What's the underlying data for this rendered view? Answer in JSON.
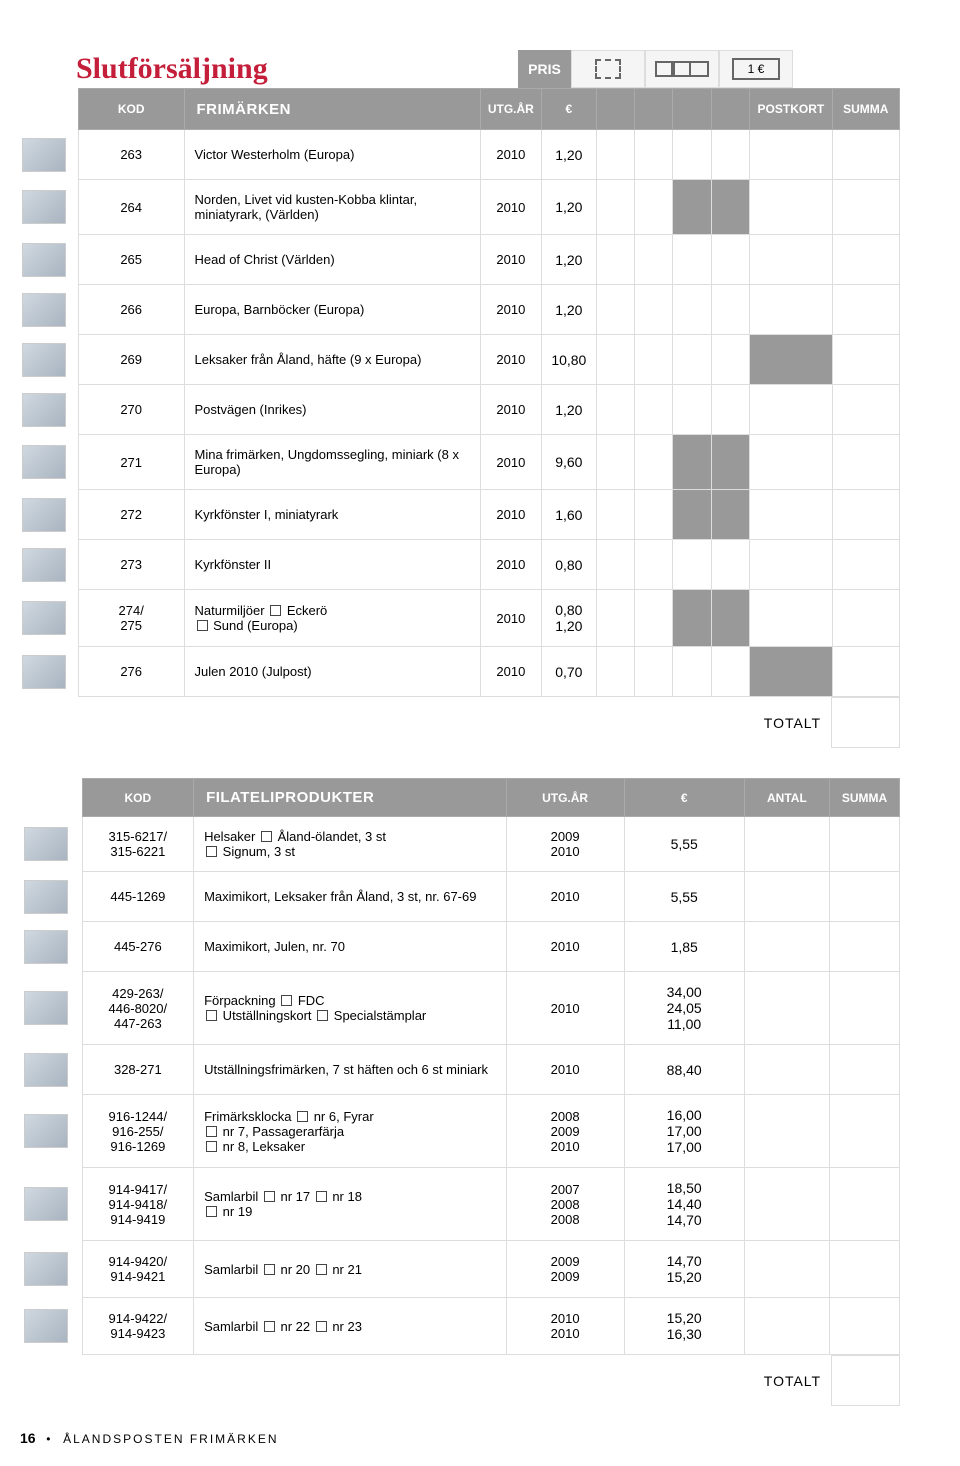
{
  "title": "Slutförsäljning",
  "labels": {
    "pris": "PRIS",
    "one_euro": "1 €",
    "kod": "KOD",
    "frimarken": "FRIMÄRKEN",
    "utgar": "UTG.ÅR",
    "euro": "€",
    "postkort": "POSTKORT",
    "summa": "SUMMA",
    "totalt": "TOTALT",
    "filateli": "FILATELIPRODUKTER",
    "antal": "ANTAL"
  },
  "rows": [
    {
      "kod": "263",
      "desc": "Victor Westerholm (Europa)",
      "year": "2010",
      "price": "1,20",
      "grey": []
    },
    {
      "kod": "264",
      "desc": "Norden, Livet vid kusten-Kobba klintar, miniatyrark, (Världen)",
      "year": "2010",
      "price": "1,20",
      "grey": [
        "s2",
        "c2"
      ]
    },
    {
      "kod": "265",
      "desc": "Head of Christ (Världen)",
      "year": "2010",
      "price": "1,20",
      "grey": []
    },
    {
      "kod": "266",
      "desc": "Europa, Barnböcker (Europa)",
      "year": "2010",
      "price": "1,20",
      "grey": []
    },
    {
      "kod": "269",
      "desc": "Leksaker från Åland, häfte (9 x Europa)",
      "year": "2010",
      "price": "10,80",
      "grey": [
        "post"
      ]
    },
    {
      "kod": "270",
      "desc": "Postvägen (Inrikes)",
      "year": "2010",
      "price": "1,20",
      "grey": []
    },
    {
      "kod": "271",
      "desc": "Mina frimärken, Ungdomssegling, miniark (8 x Europa)",
      "year": "2010",
      "price": "9,60",
      "grey": [
        "s2",
        "c2"
      ]
    },
    {
      "kod": "272",
      "desc": "Kyrkfönster I, miniatyrark",
      "year": "2010",
      "price": "1,60",
      "grey": [
        "s2",
        "c2"
      ]
    },
    {
      "kod": "273",
      "desc": "Kyrkfönster II",
      "year": "2010",
      "price": "0,80",
      "grey": []
    },
    {
      "kod": "274/ 275",
      "desc_html": "Naturmiljöer  <span class=\"chk\"></span> Eckerö<br><span class=\"chk\"></span> Sund (Europa)",
      "year": "2010",
      "price": "0,80<br>1,20",
      "grey": [
        "s2",
        "c2"
      ]
    },
    {
      "kod": "276",
      "desc": "Julen 2010 (Julpost)",
      "year": "2010",
      "price": "0,70",
      "grey": [
        "post"
      ]
    }
  ],
  "rows2": [
    {
      "kod": "315-6217/ 315-6221",
      "desc_html": "Helsaker  <span class=\"chk\"></span> Åland-ölandet, 3 st<br><span class=\"chk\"></span> Signum, 3 st",
      "year": "2009<br>2010",
      "price": "5,55"
    },
    {
      "kod": "445-1269",
      "desc": "Maximikort, Leksaker från Åland, 3 st, nr. 67-69",
      "year": "2010",
      "price": "5,55"
    },
    {
      "kod": "445-276",
      "desc": "Maximikort, Julen, nr. 70",
      "year": "2010",
      "price": "1,85"
    },
    {
      "kod": "429-263/ 446-8020/ 447-263",
      "desc_html": "Förpackning  <span class=\"chk\"></span> FDC<br><span class=\"chk\"></span> Utställningskort  <span class=\"chk\"></span> Specialstämplar",
      "year": "2010",
      "price": "34,00<br>24,05<br>11,00"
    },
    {
      "kod": "328-271",
      "desc": "Utställningsfrimärken, 7 st häften och 6 st miniark",
      "year": "2010",
      "price": "88,40"
    },
    {
      "kod": "916-1244/ 916-255/ 916-1269",
      "desc_html": "Frimärksklocka  <span class=\"chk\"></span> nr 6, Fyrar<br><span class=\"chk\"></span> nr 7, Passagerarfärja<br><span class=\"chk\"></span> nr 8, Leksaker",
      "year": "2008<br>2009<br>2010",
      "price": "16,00<br>17,00<br>17,00"
    },
    {
      "kod": "914-9417/ 914-9418/ 914-9419",
      "desc_html": "Samlarbil  <span class=\"chk\"></span> nr 17   <span class=\"chk\"></span> nr 18<br><span class=\"chk\"></span> nr 19",
      "year": "2007<br>2008<br>2008",
      "price": "18,50<br>14,40<br>14,70"
    },
    {
      "kod": "914-9420/ 914-9421",
      "desc_html": "Samlarbil  <span class=\"chk\"></span> nr 20   <span class=\"chk\"></span> nr 21",
      "year": "2009<br>2009",
      "price": "14,70<br>15,20"
    },
    {
      "kod": "914-9422/ 914-9423",
      "desc_html": "Samlarbil  <span class=\"chk\"></span> nr 22   <span class=\"chk\"></span> nr 23",
      "year": "2010<br>2010",
      "price": "15,20<br>16,30"
    }
  ],
  "footer": {
    "page": "16",
    "text": "ÅLANDSPOSTEN FRIMÄRKEN"
  },
  "thumb_colors": {
    "default": "linear-gradient(135deg,#d8d4cc,#b8b0a0)",
    "red": "linear-gradient(135deg,#e84040,#c02020)",
    "blue": "linear-gradient(135deg,#6090d0,#3060a0)",
    "truck": "linear-gradient(135deg,#d04040,#803020)",
    "car_blue": "linear-gradient(135deg,#4060c0,#203080)"
  }
}
